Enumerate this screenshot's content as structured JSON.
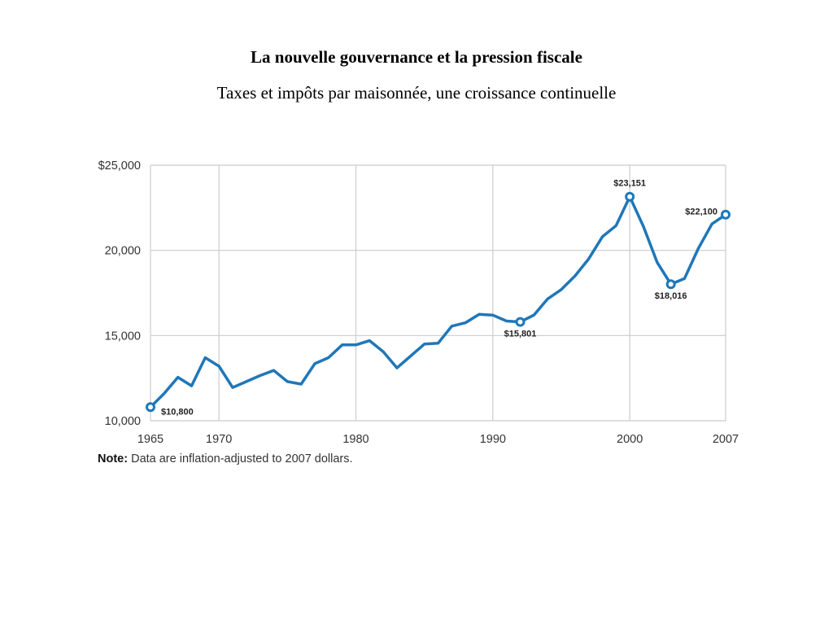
{
  "page": {
    "title": "La nouvelle gouvernance et la pression fiscale",
    "subtitle": "Taxes et impôts par maisonnée, une croissance continuelle"
  },
  "note": {
    "label": "Note:",
    "text": " Data are inflation-adjusted to 2007 dollars."
  },
  "colors": {
    "line": "#1f77b8",
    "grid": "#cccccc",
    "text": "#333333"
  },
  "chart_data": {
    "type": "line",
    "title": "",
    "xlabel": "",
    "ylabel": "",
    "xlim": [
      1965,
      2007
    ],
    "ylim": [
      10000,
      25000
    ],
    "grid": true,
    "x_ticks": [
      1965,
      1970,
      1980,
      1990,
      2000,
      2007
    ],
    "x_tick_labels": [
      "1965",
      "1970",
      "1980",
      "1990",
      "2000",
      "2007"
    ],
    "x_grid": [
      1970,
      1980,
      1990,
      2000
    ],
    "y_ticks": [
      10000,
      15000,
      20000,
      25000
    ],
    "y_tick_labels": [
      "10,000",
      "15,000",
      "20,000",
      "$25,000"
    ],
    "series": [
      {
        "x": [
          1965,
          1966,
          1967,
          1968,
          1969,
          1970,
          1971,
          1972,
          1973,
          1974,
          1975,
          1976,
          1977,
          1978,
          1979,
          1980,
          1981,
          1982,
          1983,
          1984,
          1985,
          1986,
          1987,
          1988,
          1989,
          1990,
          1991,
          1992,
          1993,
          1994,
          1995,
          1996,
          1997,
          1998,
          1999,
          2000,
          2001,
          2002,
          2003,
          2004,
          2005,
          2006,
          2007
        ],
        "y": [
          10800,
          11600,
          12550,
          12050,
          13700,
          13200,
          11950,
          12300,
          12650,
          12950,
          12300,
          12150,
          13350,
          13700,
          14450,
          14450,
          14700,
          14050,
          13100,
          13800,
          14500,
          14550,
          15550,
          15750,
          16250,
          16200,
          15850,
          15801,
          16200,
          17150,
          17700,
          18500,
          19500,
          20800,
          21450,
          23151,
          21400,
          19300,
          18016,
          18350,
          20100,
          21550,
          22100
        ]
      }
    ],
    "annotations": [
      {
        "x": 1965,
        "y": 10800,
        "label": "$10,800",
        "position": "below-right"
      },
      {
        "x": 1992,
        "y": 15801,
        "label": "$15,801",
        "position": "below"
      },
      {
        "x": 2000,
        "y": 23151,
        "label": "$23,151",
        "position": "above"
      },
      {
        "x": 2003,
        "y": 18016,
        "label": "$18,016",
        "position": "below"
      },
      {
        "x": 2007,
        "y": 22100,
        "label": "$22,100",
        "position": "left"
      }
    ]
  }
}
